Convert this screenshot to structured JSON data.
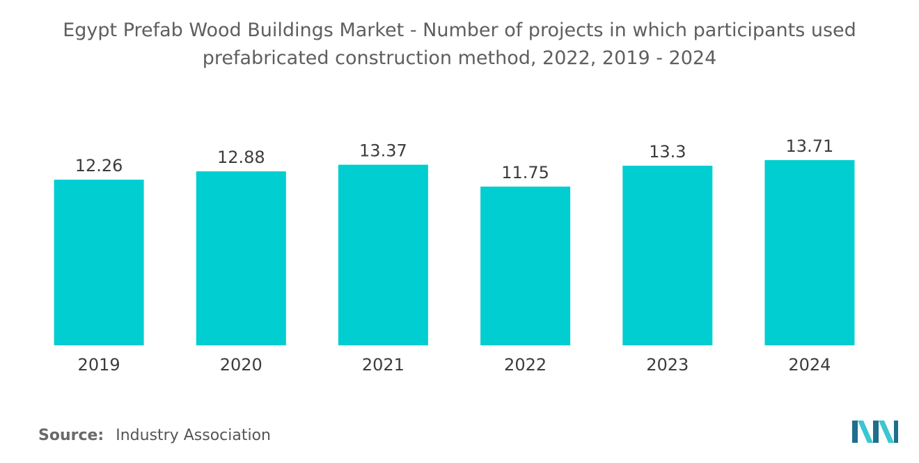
{
  "colors": {
    "bar": "#00ced1",
    "logo_dark": "#1f6e8c",
    "logo_light": "#3cc6d0"
  },
  "source": {
    "label": "Source:",
    "text": "Industry Association"
  },
  "logo": {
    "icon": "mordor-intelligence-logo-icon"
  },
  "chart_data": {
    "type": "bar",
    "title": "Egypt Prefab Wood Buildings Market - Number of projects in which participants used prefabricated construction method, 2022, 2019 - 2024",
    "categories": [
      "2019",
      "2020",
      "2021",
      "2022",
      "2023",
      "2024"
    ],
    "values": [
      12.26,
      12.88,
      13.37,
      11.75,
      13.3,
      13.71
    ],
    "value_labels": [
      "12.26",
      "12.88",
      "13.37",
      "11.75",
      "13.3",
      "13.71"
    ],
    "xlabel": "",
    "ylabel": "",
    "ylim": [
      0,
      13.71
    ],
    "grid": false,
    "legend": "none"
  }
}
